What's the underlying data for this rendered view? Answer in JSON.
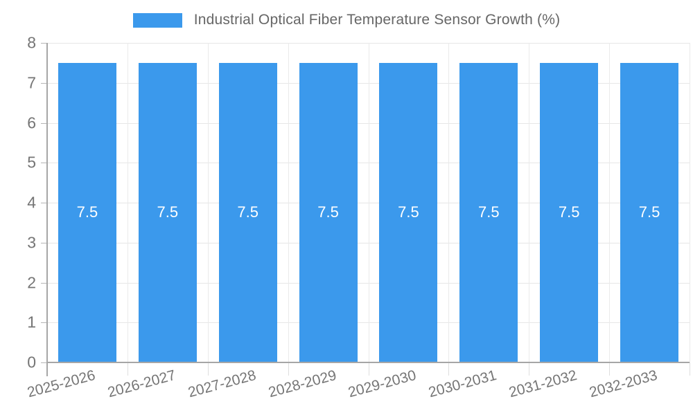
{
  "chart_data": {
    "type": "bar",
    "title": "Industrial Optical Fiber Temperature Sensor Growth (%)",
    "categories": [
      "2025-2026",
      "2026-2027",
      "2027-2028",
      "2028-2029",
      "2029-2030",
      "2030-2031",
      "2031-2032",
      "2032-2033"
    ],
    "values": [
      7.5,
      7.5,
      7.5,
      7.5,
      7.5,
      7.5,
      7.5,
      7.5
    ],
    "value_labels": [
      "7.5",
      "7.5",
      "7.5",
      "7.5",
      "7.5",
      "7.5",
      "7.5",
      "7.5"
    ],
    "xlabel": "",
    "ylabel": "",
    "ylim": [
      0,
      8
    ],
    "y_tick_labels": [
      "8",
      "7",
      "6",
      "5",
      "4",
      "3",
      "2",
      "1",
      "0"
    ],
    "grid": true,
    "legend_position": "top",
    "x_label_rotation_deg": -15,
    "colors": {
      "bar": "#3b99ec",
      "value_label": "#ffffff",
      "axis_line": "#a6a6a6",
      "gridline": "#e6e6e6",
      "tick_text": "#757575",
      "legend_text": "#666666",
      "background": "#ffffff"
    }
  }
}
